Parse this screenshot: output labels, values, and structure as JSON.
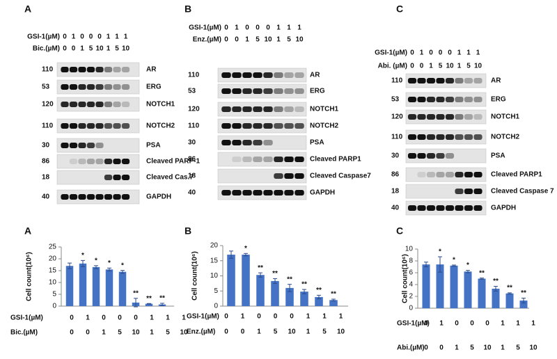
{
  "blots": [
    {
      "letter": "A",
      "treatments": [
        {
          "label": "GSI-1(µM)",
          "values": [
            0,
            1,
            0,
            0,
            0,
            1,
            1,
            1
          ]
        },
        {
          "label": "Bic.(µM)",
          "values": [
            0,
            0,
            1,
            5,
            10,
            1,
            5,
            10
          ]
        }
      ],
      "bands": [
        {
          "mw": 110,
          "name": "AR"
        },
        {
          "mw": 53,
          "name": "ERG"
        },
        {
          "mw": 120,
          "name": "NOTCH1"
        },
        {
          "mw": 110,
          "name": "NOTCH2"
        },
        {
          "mw": 30,
          "name": "PSA"
        },
        {
          "mw": 86,
          "name": "Cleaved PARP-1"
        },
        {
          "mw": 18,
          "name": "Cleaved Cas.7"
        },
        {
          "mw": 40,
          "name": "GAPDH"
        }
      ]
    },
    {
      "letter": "B",
      "treatments": [
        {
          "label": "GSI-1(µM)",
          "values": [
            0,
            1,
            0,
            0,
            0,
            1,
            1,
            1
          ]
        },
        {
          "label": "Enz.(µM)",
          "values": [
            0,
            0,
            1,
            5,
            10,
            1,
            5,
            10
          ]
        }
      ],
      "bands": [
        {
          "mw": 110,
          "name": "AR"
        },
        {
          "mw": 53,
          "name": "ERG"
        },
        {
          "mw": 120,
          "name": "NOTCH1"
        },
        {
          "mw": 110,
          "name": "NOTCH2"
        },
        {
          "mw": 30,
          "name": "PSA"
        },
        {
          "mw": 86,
          "name": "Cleaved PARP1"
        },
        {
          "mw": 18,
          "name": "Cleaved Caspase7"
        },
        {
          "mw": 40,
          "name": "GAPDH"
        }
      ]
    },
    {
      "letter": "C",
      "treatments": [
        {
          "label": "GSI-1(µM)",
          "values": [
            0,
            1,
            0,
            0,
            0,
            1,
            1,
            1
          ]
        },
        {
          "label": "Abi. (µM)",
          "values": [
            0,
            0,
            1,
            5,
            10,
            1,
            5,
            10
          ]
        }
      ],
      "bands": [
        {
          "mw": 110,
          "name": "AR"
        },
        {
          "mw": 53,
          "name": "ERG"
        },
        {
          "mw": 120,
          "name": "NOTCH1"
        },
        {
          "mw": 110,
          "name": "NOTCH2"
        },
        {
          "mw": 30,
          "name": "PSA"
        },
        {
          "mw": 86,
          "name": "Cleaved PARP1"
        },
        {
          "mw": 18,
          "name": "Cleaved Caspase 7"
        },
        {
          "mw": 40,
          "name": "GAPDH"
        }
      ]
    }
  ],
  "chart_data": [
    {
      "type": "bar",
      "letter": "A",
      "y_label": "Cell count(10⁶)",
      "color": "#4472c4",
      "values": [
        17,
        18,
        16.5,
        15.5,
        14.5,
        1.5,
        1,
        0.7
      ],
      "errors": [
        1.2,
        1.3,
        0.6,
        0.6,
        0.6,
        1.8,
        0.1,
        0.5
      ],
      "annotations": [
        null,
        "*",
        "*",
        "*",
        "*",
        "**",
        "**",
        "**"
      ],
      "ylim": [
        0,
        25
      ],
      "yticks": [
        0,
        5,
        10,
        15,
        20,
        25
      ],
      "rows": [
        {
          "label": "GSI-1(µM)",
          "values": [
            0,
            1,
            0,
            0,
            0,
            1,
            1,
            1
          ]
        },
        {
          "label": "Bic.(µM)",
          "values": [
            0,
            0,
            1,
            5,
            10,
            1,
            5,
            10
          ]
        }
      ]
    },
    {
      "type": "bar",
      "letter": "B",
      "y_label": "Cell count(10⁶)",
      "color": "#4472c4",
      "values": [
        17,
        17,
        10.3,
        8.3,
        6,
        4.8,
        3,
        2
      ],
      "errors": [
        1.2,
        0.4,
        0.7,
        0.8,
        1.2,
        0.7,
        0.6,
        0.3
      ],
      "annotations": [
        null,
        "*",
        "**",
        "**",
        "**",
        "**",
        "**",
        "**"
      ],
      "ylim": [
        0,
        20
      ],
      "yticks": [
        0,
        5,
        10,
        15,
        20
      ],
      "rows": [
        {
          "label": "GSI-1(µM)",
          "values": [
            0,
            1,
            0,
            0,
            0,
            1,
            1,
            1
          ]
        },
        {
          "label": "Enz.(µM)",
          "values": [
            0,
            0,
            1,
            5,
            10,
            1,
            5,
            10
          ]
        }
      ]
    },
    {
      "type": "bar",
      "letter": "C",
      "y_label": "Cell count(10⁶)",
      "color": "#4472c4",
      "values": [
        7.4,
        7.4,
        7.2,
        6.2,
        5,
        3.3,
        2.5,
        1.3
      ],
      "errors": [
        0.4,
        1.3,
        0.1,
        0.2,
        0.1,
        0.4,
        0.1,
        0.4
      ],
      "annotations": [
        null,
        "*",
        "*",
        "*",
        "**",
        "**",
        "**",
        "**"
      ],
      "ylim": [
        0,
        10
      ],
      "yticks": [
        0,
        2,
        4,
        6,
        8,
        10
      ],
      "rows": [
        {
          "label": "GSI-1(µM)",
          "values": [
            0,
            1,
            0,
            0,
            0,
            1,
            1,
            1
          ]
        },
        {
          "label": "Abi.(µM)",
          "values": [
            0,
            0,
            1,
            5,
            10,
            1,
            5,
            10
          ]
        }
      ]
    }
  ]
}
